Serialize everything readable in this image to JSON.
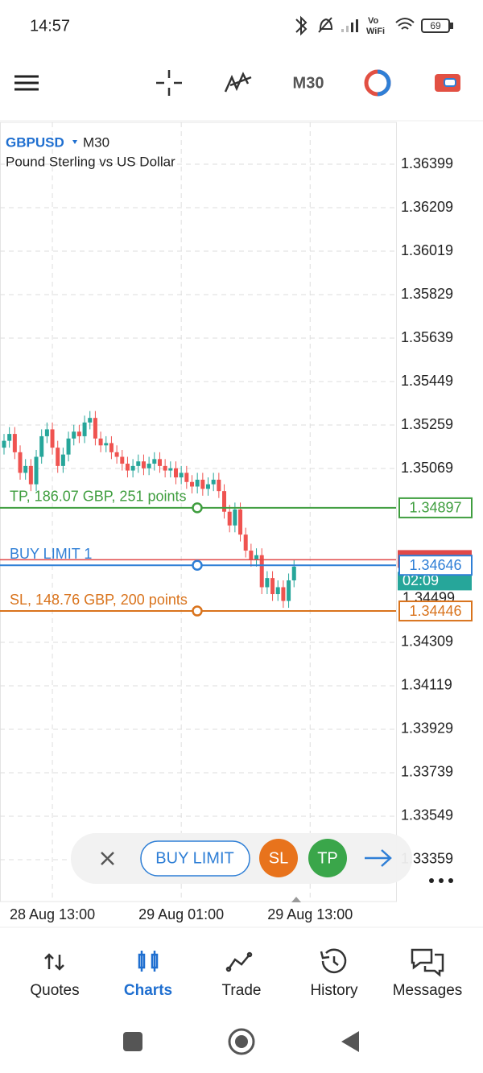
{
  "status_bar": {
    "time": "14:57",
    "vowifi": [
      "Vo",
      "WiFi"
    ],
    "battery": "69"
  },
  "toolbar": {
    "timeframe": "M30"
  },
  "chart_data": {
    "type": "candlestick",
    "symbol": "GBPUSD",
    "timeframe": "M30",
    "subtitle": "Pound Sterling vs US Dollar",
    "up_color": "#26a69a",
    "down_color": "#ef5350",
    "grid": true,
    "open": [
      1.3516,
      1.3519,
      1.3522,
      1.3514,
      1.3505,
      1.3508,
      1.35,
      1.3512,
      1.3521,
      1.3524,
      1.3516,
      1.3508,
      1.3513,
      1.352,
      1.3523,
      1.3521,
      1.3527,
      1.3529,
      1.352,
      1.3517,
      1.3518,
      1.3514,
      1.3512,
      1.3509,
      1.3506,
      1.3508,
      1.351,
      1.3507,
      1.3509,
      1.3511,
      1.3508,
      1.3506,
      1.3507,
      1.3503,
      1.3505,
      1.3501,
      1.3499,
      1.3502,
      1.3498,
      1.35,
      1.3502,
      1.3497,
      1.3488,
      1.3482,
      1.3489,
      1.3478,
      1.3471,
      1.3467,
      1.3469,
      1.3455,
      1.3459,
      1.3452,
      1.3455,
      1.3449,
      1.3458
    ],
    "high": [
      1.3522,
      1.3525,
      1.3525,
      1.3517,
      1.3511,
      1.3511,
      1.3515,
      1.3524,
      1.3527,
      1.3527,
      1.3519,
      1.3516,
      1.3523,
      1.3526,
      1.3526,
      1.353,
      1.3532,
      1.3532,
      1.3523,
      1.3521,
      1.3521,
      1.3517,
      1.3515,
      1.3512,
      1.3511,
      1.3513,
      1.3513,
      1.3512,
      1.3514,
      1.3514,
      1.3511,
      1.351,
      1.351,
      1.3508,
      1.3508,
      1.3504,
      1.3505,
      1.3505,
      1.3503,
      1.3505,
      1.3505,
      1.35,
      1.3491,
      1.3492,
      1.3492,
      1.3481,
      1.3474,
      1.3472,
      1.3472,
      1.3462,
      1.3462,
      1.3458,
      1.3458,
      1.3461,
      1.3467
    ],
    "low": [
      1.3513,
      1.3516,
      1.3511,
      1.3502,
      1.3502,
      1.3497,
      1.3497,
      1.3509,
      1.3518,
      1.3513,
      1.3505,
      1.3505,
      1.351,
      1.3517,
      1.3518,
      1.3518,
      1.3524,
      1.3517,
      1.3514,
      1.3514,
      1.3511,
      1.3509,
      1.3506,
      1.3503,
      1.3503,
      1.3505,
      1.3504,
      1.3504,
      1.3506,
      1.3505,
      1.3503,
      1.3503,
      1.35,
      1.35,
      1.3498,
      1.3496,
      1.3496,
      1.3495,
      1.3495,
      1.3497,
      1.3494,
      1.3485,
      1.3479,
      1.3479,
      1.3475,
      1.3468,
      1.3464,
      1.3464,
      1.3452,
      1.3452,
      1.3449,
      1.3449,
      1.3446,
      1.3446,
      1.3455
    ],
    "close": [
      1.3519,
      1.3522,
      1.3514,
      1.3505,
      1.3508,
      1.35,
      1.3512,
      1.3521,
      1.3524,
      1.3516,
      1.3508,
      1.3513,
      1.352,
      1.3523,
      1.3521,
      1.3527,
      1.3529,
      1.352,
      1.3517,
      1.3518,
      1.3514,
      1.3512,
      1.3509,
      1.3506,
      1.3508,
      1.351,
      1.3507,
      1.3509,
      1.3511,
      1.3508,
      1.3506,
      1.3507,
      1.3503,
      1.3505,
      1.3501,
      1.3499,
      1.3502,
      1.3498,
      1.35,
      1.3502,
      1.3497,
      1.3488,
      1.3482,
      1.3489,
      1.3478,
      1.3471,
      1.3467,
      1.3469,
      1.3455,
      1.3459,
      1.3452,
      1.3455,
      1.3449,
      1.3458,
      1.3464
    ],
    "xlim": [
      -0.75,
      73
    ],
    "ylim": [
      1.33176,
      1.36582
    ],
    "xticks": [
      {
        "value": 9,
        "label": "28 Aug 13:00"
      },
      {
        "value": 33,
        "label": "29 Aug 01:00"
      },
      {
        "value": 57,
        "label": "29 Aug 13:00"
      }
    ],
    "yticks": [
      1.36399,
      1.36209,
      1.36019,
      1.35829,
      1.35639,
      1.35449,
      1.35259,
      1.35069,
      1.34309,
      1.34119,
      1.33929,
      1.33739,
      1.33549,
      1.33359
    ],
    "bid": {
      "value": 1.3467,
      "color": "#e04848"
    },
    "ask": 1.34499,
    "timer": "02:09",
    "levels": [
      {
        "name": "TP, 186.07 GBP, 251 points",
        "value": 1.34897,
        "color": "#3f9e3f"
      },
      {
        "name": "BUY LIMIT 1",
        "value": 1.34646,
        "color": "#2f7fd6"
      },
      {
        "name": "SL, 148.76 GBP, 200 points",
        "value": 1.34446,
        "color": "#d9731c"
      }
    ]
  },
  "order_panel": {
    "type": "BUY LIMIT",
    "sl": "SL",
    "tp": "TP"
  },
  "nav": {
    "items": [
      "Quotes",
      "Charts",
      "Trade",
      "History",
      "Messages"
    ],
    "active": 1
  }
}
